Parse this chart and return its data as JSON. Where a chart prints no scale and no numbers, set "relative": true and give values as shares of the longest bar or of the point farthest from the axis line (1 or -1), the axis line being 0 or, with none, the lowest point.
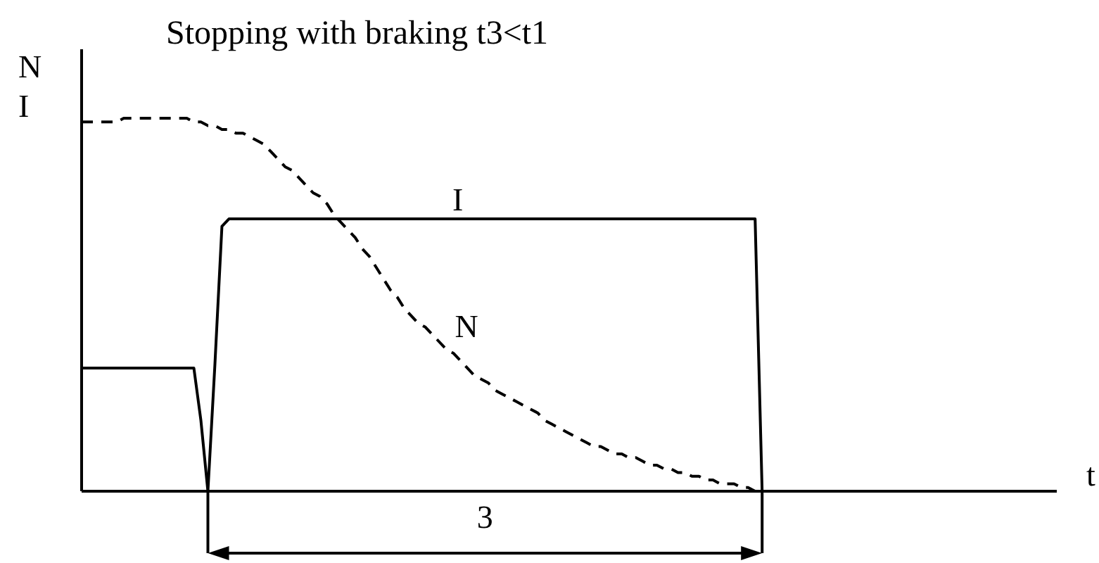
{
  "chart_data": {
    "type": "line",
    "title": "Stopping with braking t3<t1",
    "xlabel": "t",
    "ylabel": "N\nI",
    "relative": true,
    "marker": "none",
    "annotations": [
      "3"
    ],
    "categories": [
      null,
      null,
      null,
      null,
      null,
      null,
      null,
      null,
      null,
      null,
      null,
      null,
      null,
      null,
      null,
      null,
      null,
      null,
      null,
      null,
      null,
      null,
      null,
      null,
      null,
      null,
      null,
      null,
      null,
      null,
      null,
      null,
      null,
      null,
      null,
      null,
      null,
      null,
      null,
      null,
      null,
      null,
      null,
      null,
      null,
      null,
      null,
      null,
      null,
      null,
      null,
      null,
      null,
      null,
      null,
      null,
      null,
      null,
      null,
      null,
      null,
      null,
      null,
      null,
      null,
      null,
      null,
      null,
      null,
      null,
      null,
      null,
      null,
      null,
      null,
      null,
      null,
      null,
      null,
      null,
      null,
      null,
      null,
      null,
      null,
      null,
      null,
      null,
      null,
      null,
      null,
      null,
      null,
      null,
      null,
      null,
      null,
      null,
      null,
      null,
      null,
      null,
      null,
      null,
      null,
      null,
      null,
      null,
      null,
      null,
      null,
      null,
      null,
      null,
      null,
      null,
      null,
      null,
      null,
      null,
      null,
      null,
      null,
      null,
      null,
      null,
      null,
      null,
      null,
      null,
      null,
      null,
      null,
      null,
      null,
      null,
      null,
      null,
      null,
      null
    ],
    "series": [
      {
        "name": "I",
        "color": "#000000",
        "line_style": "solid",
        "values": [
          0.33,
          0.33,
          0.33,
          0.33,
          0.33,
          0.33,
          0.33,
          0.33,
          0.33,
          0.33,
          0.33,
          0.33,
          0.33,
          0.33,
          0.33,
          0.33,
          0.33,
          0.19,
          0,
          0.34,
          0.71,
          0.73,
          0.73,
          0.73,
          0.73,
          0.73,
          0.73,
          0.73,
          0.73,
          0.73,
          0.73,
          0.73,
          0.73,
          0.73,
          0.73,
          0.73,
          0.73,
          0.73,
          0.73,
          0.73,
          0.73,
          0.73,
          0.73,
          0.73,
          0.73,
          0.73,
          0.73,
          0.73,
          0.73,
          0.73,
          0.73,
          0.73,
          0.73,
          0.73,
          0.73,
          0.73,
          0.73,
          0.73,
          0.73,
          0.73,
          0.73,
          0.73,
          0.73,
          0.73,
          0.73,
          0.73,
          0.73,
          0.73,
          0.73,
          0.73,
          0.73,
          0.73,
          0.73,
          0.73,
          0.73,
          0.73,
          0.73,
          0.73,
          0.73,
          0.73,
          0.73,
          0.73,
          0.73,
          0.73,
          0.73,
          0.73,
          0.73,
          0.73,
          0.73,
          0.73,
          0.73,
          0.73,
          0.73,
          0.73,
          0.73,
          0.73,
          0.73,
          0,
          null,
          null,
          null,
          null,
          null,
          null,
          null,
          null,
          null,
          null,
          null,
          null,
          null,
          null,
          null,
          null,
          null,
          null,
          null,
          null,
          null,
          null,
          null,
          null,
          null,
          null,
          null,
          null,
          null,
          null,
          null,
          null,
          null,
          null,
          null,
          null,
          null,
          null,
          null,
          null,
          null,
          null
        ]
      },
      {
        "name": "N",
        "color": "#000000",
        "line_style": "dashed",
        "values": [
          0.99,
          0.99,
          0.99,
          0.99,
          0.99,
          0.99,
          1,
          1,
          1,
          1,
          1,
          1,
          1,
          1,
          1,
          1,
          0.99,
          0.99,
          0.98,
          0.98,
          0.97,
          0.97,
          0.96,
          0.96,
          0.95,
          0.94,
          0.93,
          0.91,
          0.89,
          0.87,
          0.86,
          0.84,
          0.82,
          0.8,
          0.79,
          0.77,
          0.74,
          0.72,
          0.7,
          0.68,
          0.65,
          0.63,
          0.6,
          0.57,
          0.54,
          0.52,
          0.49,
          0.47,
          0.45,
          0.44,
          0.42,
          0.4,
          0.38,
          0.37,
          0.35,
          0.33,
          0.31,
          0.3,
          0.29,
          0.27,
          0.26,
          0.25,
          0.24,
          0.23,
          0.22,
          0.21,
          0.19,
          0.18,
          0.17,
          0.16,
          0.15,
          0.14,
          0.13,
          0.12,
          0.12,
          0.11,
          0.1,
          0.1,
          0.09,
          0.09,
          0.08,
          0.07,
          0.07,
          0.06,
          0.06,
          0.05,
          0.05,
          0.04,
          0.04,
          0.03,
          0.03,
          0.02,
          0.02,
          0.02,
          0.01,
          0.01,
          0,
          0,
          null,
          null,
          null,
          null,
          null,
          null,
          null,
          null,
          null,
          null,
          null,
          null,
          null,
          null,
          null,
          null,
          null,
          null,
          null,
          null,
          null,
          null,
          null,
          null,
          null,
          null,
          null,
          null,
          null,
          null,
          null,
          null,
          null,
          null,
          null,
          null,
          null,
          null,
          null,
          null,
          null,
          null
        ]
      }
    ]
  }
}
